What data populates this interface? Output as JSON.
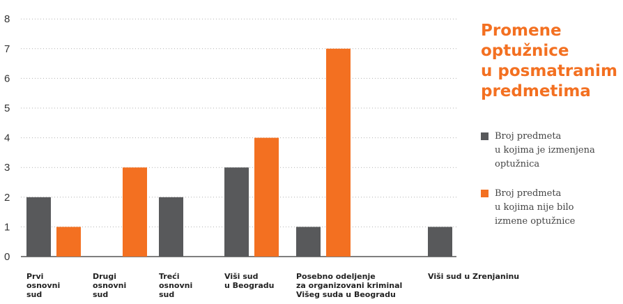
{
  "title": "Promene\noptužnice\nu posmatranim\npredmetima",
  "colors": {
    "accent": "#f37021",
    "gray": "#58595b",
    "grid": "#b0b0b0",
    "axis": "#333333"
  },
  "chart_data": {
    "type": "bar",
    "title": "Promene optužnice u posmatranim predmetima",
    "xlabel": "",
    "ylabel": "",
    "ylim": [
      0,
      8
    ],
    "yticks": [
      0,
      1,
      2,
      3,
      4,
      5,
      6,
      7,
      8
    ],
    "grid": true,
    "legend_position": "right",
    "categories": [
      [
        "Prvi",
        "osnovni",
        "sud"
      ],
      [
        "Drugi",
        "osnovni",
        "sud"
      ],
      [
        "Treći",
        "osnovni",
        "sud"
      ],
      [
        "Viši sud",
        "u Beogradu"
      ],
      [
        "Posebno odeljenje",
        "za organizovani kriminal",
        "Višeg suda u Beogradu"
      ],
      [
        "Viši sud u Zrenjaninu"
      ]
    ],
    "series": [
      {
        "name": "Broj predmeta\nu kojima je izmenjena\noptužnica",
        "color": "#58595b",
        "values": [
          2,
          0,
          2,
          3,
          1,
          1
        ]
      },
      {
        "name": "Broj predmeta\nu kojima nije bilo\nizmene optužnice",
        "color": "#f37021",
        "values": [
          1,
          3,
          0,
          4,
          7,
          0
        ]
      }
    ]
  }
}
